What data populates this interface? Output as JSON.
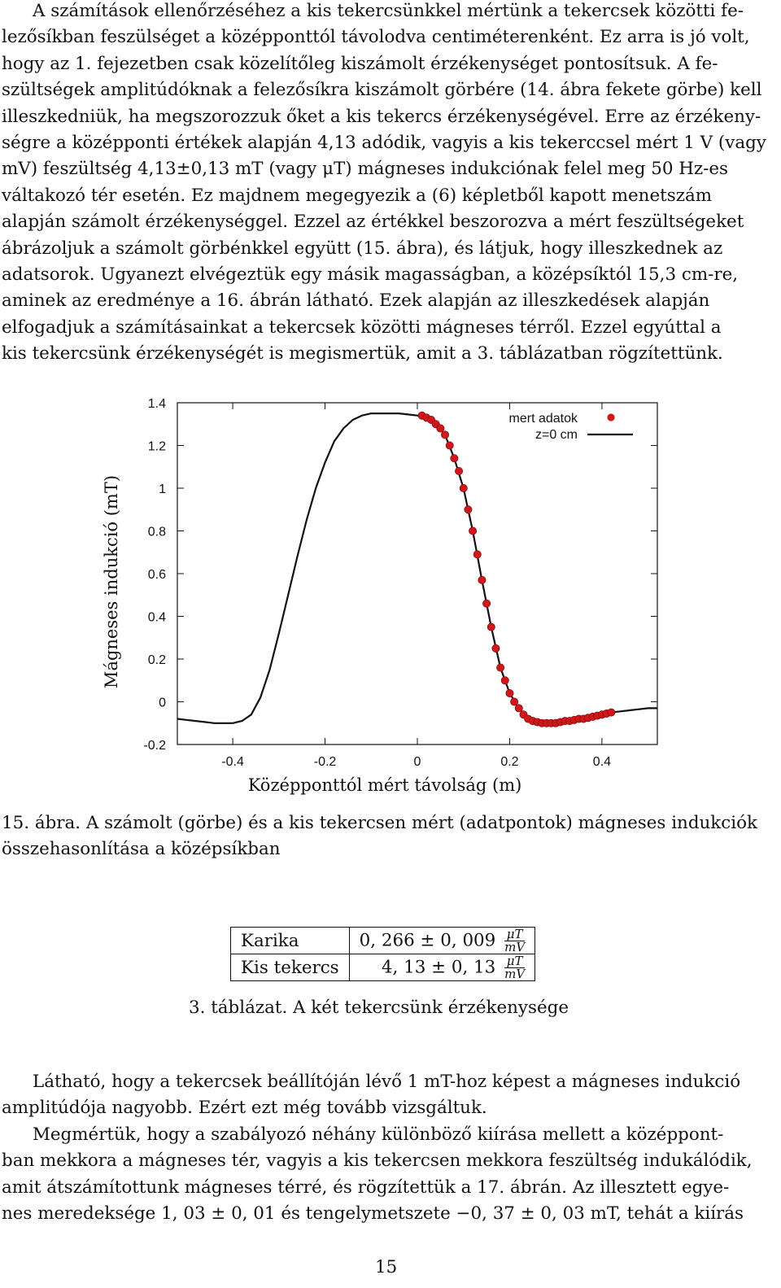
{
  "para1": [
    "A számítások ellenőrzéséhez a kis tekercsünkkel mértünk a tekercsek közötti fe-",
    "lezősíkban feszülséget a középponttól távolodva centiméterenként. Ez arra is jó volt,",
    "hogy az 1. fejezetben csak közelítőleg kiszámolt érzékenységet pontosítsuk. A fe-",
    "szültségek amplitúdóknak a felezősíkra kiszámolt görbére (14. ábra fekete görbe) kell",
    "illeszkedniük, ha megszorozzuk őket a kis tekercs érzékenységével. Erre az érzékeny-",
    "ségre a középponti értékek alapján 4,13 adódik, vagyis a kis tekerccsel mért 1 V (vagy",
    "mV) feszültség 4,13±0,13 mT (vagy μT) mágneses indukciónak felel meg 50 Hz-es",
    "váltakozó tér esetén. Ez majdnem megegyezik a (6) képletből kapott menetszám",
    "alapján számolt érzékenységgel. Ezzel az értékkel beszorozva a mért feszültségeket",
    "ábrázoljuk a számolt görbénkkel együtt (15. ábra), és látjuk, hogy illeszkednek az",
    "adatsorok. Ugyanezt elvégeztük egy másik magasságban, a középsíktól 15,3 cm-re,",
    "aminek az eredménye a 16. ábrán látható. Ezek alapján az illeszkedések alapján",
    "elfogadjuk a számításainkat a tekercsek közötti mágneses térről. Ezzel egyúttal a",
    "kis tekercsünk érzékenységét is megismertük, amit a 3. táblázatban rögzítettünk."
  ],
  "figure_caption": "15. ábra. A számolt (görbe) és a kis tekercsen mért (adatpontok) mágneses indukciók összehasonlítása a középsíkban",
  "chart_data": {
    "type": "scatter",
    "xlabel": "Középponttól mért távolság (m)",
    "ylabel": "Mágneses indukció (mT)",
    "xlim": [
      -0.52,
      0.52
    ],
    "ylim": [
      -0.2,
      1.4
    ],
    "xticks": [
      "-0.4",
      "-0.2",
      "0",
      "0.2",
      "0.4"
    ],
    "yticks": [
      "-0.2",
      "0",
      "0.2",
      "0.4",
      "0.6",
      "0.8",
      "1",
      "1.2",
      "1.4"
    ],
    "grid": false,
    "legend_position": "top-right",
    "series": [
      {
        "name": "mert adatok",
        "kind": "points",
        "color": "#d0171a",
        "x": [
          0.01,
          0.02,
          0.03,
          0.04,
          0.05,
          0.06,
          0.07,
          0.08,
          0.09,
          0.1,
          0.11,
          0.12,
          0.13,
          0.14,
          0.15,
          0.16,
          0.17,
          0.18,
          0.19,
          0.2,
          0.21,
          0.22,
          0.23,
          0.24,
          0.25,
          0.26,
          0.27,
          0.28,
          0.29,
          0.3,
          0.31,
          0.32,
          0.33,
          0.34,
          0.35,
          0.36,
          0.37,
          0.38,
          0.39,
          0.4,
          0.41,
          0.42
        ],
        "y": [
          1.34,
          1.33,
          1.32,
          1.3,
          1.28,
          1.25,
          1.2,
          1.14,
          1.08,
          1.0,
          0.9,
          0.8,
          0.69,
          0.57,
          0.46,
          0.35,
          0.25,
          0.16,
          0.1,
          0.04,
          0.0,
          -0.03,
          -0.06,
          -0.08,
          -0.09,
          -0.095,
          -0.1,
          -0.1,
          -0.1,
          -0.1,
          -0.095,
          -0.09,
          -0.09,
          -0.085,
          -0.08,
          -0.08,
          -0.075,
          -0.07,
          -0.065,
          -0.06,
          -0.055,
          -0.05
        ]
      },
      {
        "name": "z=0 cm",
        "kind": "line",
        "color": "#111111",
        "x": [
          -0.52,
          -0.5,
          -0.48,
          -0.46,
          -0.44,
          -0.42,
          -0.4,
          -0.38,
          -0.36,
          -0.34,
          -0.32,
          -0.3,
          -0.28,
          -0.26,
          -0.24,
          -0.22,
          -0.2,
          -0.18,
          -0.16,
          -0.14,
          -0.12,
          -0.1,
          -0.08,
          -0.06,
          -0.04,
          -0.02,
          0.0,
          0.02,
          0.04,
          0.06,
          0.08,
          0.1,
          0.12,
          0.14,
          0.16,
          0.18,
          0.2,
          0.22,
          0.24,
          0.26,
          0.28,
          0.3,
          0.32,
          0.34,
          0.36,
          0.38,
          0.4,
          0.42,
          0.44,
          0.46,
          0.48,
          0.5,
          0.52
        ],
        "y": [
          -0.08,
          -0.085,
          -0.09,
          -0.095,
          -0.1,
          -0.1,
          -0.1,
          -0.09,
          -0.06,
          0.02,
          0.15,
          0.32,
          0.5,
          0.68,
          0.85,
          1.0,
          1.12,
          1.22,
          1.28,
          1.32,
          1.34,
          1.35,
          1.35,
          1.35,
          1.35,
          1.345,
          1.34,
          1.33,
          1.3,
          1.25,
          1.14,
          1.0,
          0.8,
          0.57,
          0.35,
          0.16,
          0.04,
          -0.03,
          -0.08,
          -0.095,
          -0.1,
          -0.1,
          -0.09,
          -0.085,
          -0.08,
          -0.07,
          -0.06,
          -0.05,
          -0.045,
          -0.04,
          -0.035,
          -0.03,
          -0.03
        ]
      }
    ]
  },
  "table": {
    "rows": [
      {
        "label": "Karika",
        "value": "0, 266 ± 0, 009",
        "unit_num": "μT",
        "unit_den": "mV"
      },
      {
        "label": "Kis tekercs",
        "value": "4, 13 ± 0, 13",
        "unit_num": "μT",
        "unit_den": "mV"
      }
    ],
    "caption": "3. táblázat. A két tekercsünk érzékenysége"
  },
  "para2": [
    "Látható, hogy a tekercsek beállítóján lévő 1 mT-hoz képest a mágneses indukció",
    "amplitúdója nagyobb. Ezért ezt még tovább vizsgáltuk."
  ],
  "para3": [
    "Megmértük, hogy a szabályozó néhány különböző kiírása mellett a középpont-",
    "ban mekkora a mágneses tér, vagyis a kis tekercsen mekkora feszültség indukálódik,",
    "amit átszámítottunk mágneses térré, és rögzítettük a 17. ábrán. Az illesztett egye-",
    "nes meredeksége 1, 03 ± 0, 01 és tengelymetszete −0, 37 ± 0, 03 mT, tehát a kiírás"
  ],
  "page_number": "15"
}
